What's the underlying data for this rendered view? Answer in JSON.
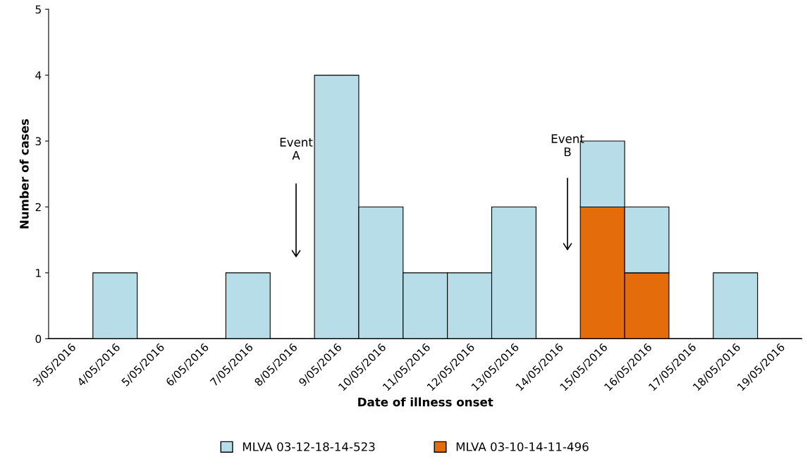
{
  "chart_data": {
    "type": "bar",
    "stacked": true,
    "xlabel": "Date of illness onset",
    "ylabel": "Number of cases",
    "categories": [
      "3/05/2016",
      "4/05/2016",
      "5/05/2016",
      "6/05/2016",
      "7/05/2016",
      "8/05/2016",
      "9/05/2016",
      "10/05/2016",
      "11/05/2016",
      "12/05/2016",
      "13/05/2016",
      "14/05/2016",
      "15/05/2016",
      "16/05/2016",
      "17/05/2016",
      "18/05/2016",
      "19/05/2016"
    ],
    "series": [
      {
        "name": "MLVA 03-10-14-11-496",
        "color": "#e46c0a",
        "values": [
          0,
          0,
          0,
          0,
          0,
          0,
          0,
          0,
          0,
          0,
          0,
          0,
          2,
          1,
          0,
          0,
          0
        ]
      },
      {
        "name": "MLVA 03-12-18-14-523",
        "color": "#b7dee8",
        "values": [
          0,
          1,
          0,
          0,
          1,
          0,
          4,
          2,
          1,
          1,
          2,
          0,
          1,
          1,
          0,
          1,
          0
        ]
      }
    ],
    "ylim": [
      0,
      5
    ],
    "yticks": [
      0,
      1,
      2,
      3,
      4,
      5
    ],
    "grid": false,
    "legend": "bottom",
    "annotations": [
      "Event\nA",
      "Event\nB"
    ]
  }
}
